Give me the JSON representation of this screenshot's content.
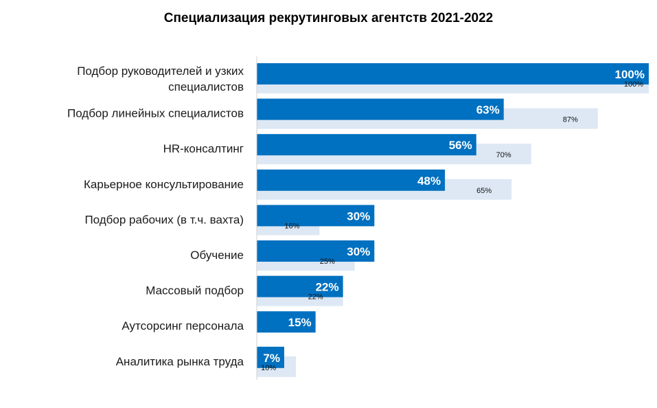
{
  "chart_data": {
    "type": "bar",
    "orientation": "horizontal",
    "title": "Специализация  рекрутинговых агентств 2021-2022",
    "xlabel": "",
    "ylabel": "",
    "xlim": [
      0,
      100
    ],
    "grid": false,
    "categories": [
      "Подбор руководителей и узких специалистов",
      "Подбор линейных специалистов",
      "HR-консалтинг",
      "Карьерное консультирование",
      "Подбор рабочих (в т.ч. вахта)",
      "Обучение",
      "Массовый подбор",
      "Аутсорсинг персонала",
      "Аналитика рынка труда"
    ],
    "category_lines": [
      [
        "Подбор руководителей и узких",
        "специалистов"
      ],
      [
        "Подбор линейных специалистов"
      ],
      [
        "HR-консалтинг"
      ],
      [
        "Карьерное консультирование"
      ],
      [
        "Подбор рабочих (в т.ч. вахта)"
      ],
      [
        "Обучение"
      ],
      [
        "Массовый подбор"
      ],
      [
        "Аутсорсинг персонала"
      ],
      [
        "Аналитика рынка труда"
      ]
    ],
    "series": [
      {
        "name": "primary",
        "color": "#0070c0",
        "values": [
          100,
          63,
          56,
          48,
          30,
          30,
          22,
          15,
          7
        ]
      },
      {
        "name": "secondary",
        "color": "#dde8f4",
        "values": [
          100,
          87,
          70,
          65,
          16,
          25,
          22,
          null,
          10
        ]
      }
    ]
  }
}
